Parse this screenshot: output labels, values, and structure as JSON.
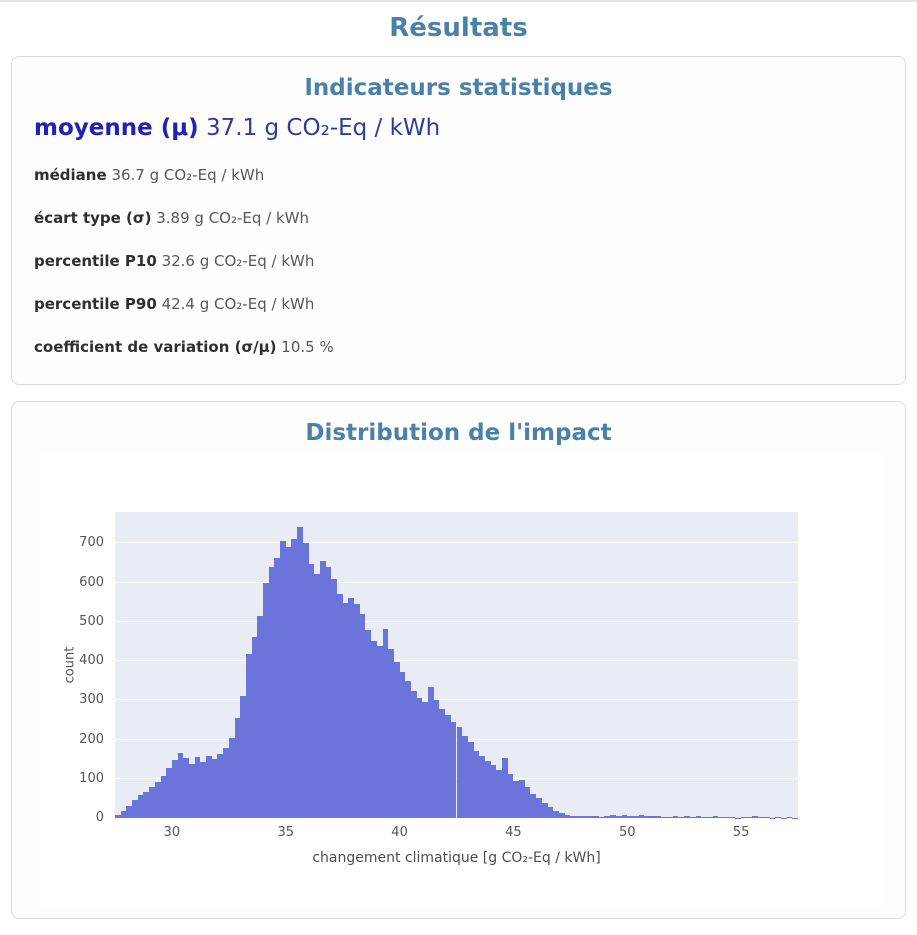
{
  "page": {
    "title": "Résultats"
  },
  "stats_card": {
    "title": "Indicateurs statistiques",
    "highlight": {
      "label": "moyenne (μ)",
      "value": "37.1 g CO₂-Eq / kWh"
    },
    "rows": [
      {
        "label": "médiane",
        "value": "36.7 g CO₂-Eq / kWh"
      },
      {
        "label": "écart type (σ)",
        "value": "3.89 g CO₂-Eq / kWh"
      },
      {
        "label": "percentile P10",
        "value": "32.6 g CO₂-Eq / kWh"
      },
      {
        "label": "percentile P90",
        "value": "42.4 g CO₂-Eq / kWh"
      },
      {
        "label": "coefficient de variation (σ/μ)",
        "value": "10.5 %"
      }
    ]
  },
  "chart_card": {
    "title": "Distribution de l'impact"
  },
  "chart_data": {
    "type": "bar",
    "subtype": "histogram",
    "title": "Distribution de l'impact",
    "xlabel": "changement climatique [g CO₂-Eq / kWh]",
    "ylabel": "count",
    "xlim": [
      27.5,
      57.5
    ],
    "ylim": [
      0,
      780
    ],
    "x_ticks": [
      30,
      35,
      40,
      45,
      50,
      55
    ],
    "y_ticks": [
      0,
      100,
      200,
      300,
      400,
      500,
      600,
      700
    ],
    "bin_start": 27.5,
    "bin_width": 0.25,
    "counts": [
      8,
      18,
      30,
      45,
      58,
      66,
      78,
      92,
      108,
      128,
      148,
      166,
      152,
      138,
      155,
      144,
      158,
      150,
      163,
      178,
      205,
      255,
      310,
      418,
      462,
      515,
      600,
      640,
      662,
      705,
      690,
      712,
      742,
      700,
      648,
      622,
      655,
      640,
      610,
      572,
      548,
      562,
      545,
      520,
      480,
      452,
      438,
      482,
      430,
      398,
      372,
      348,
      325,
      305,
      295,
      335,
      300,
      278,
      262,
      246,
      232,
      210,
      195,
      172,
      158,
      146,
      134,
      122,
      152,
      112,
      95,
      98,
      78,
      62,
      52,
      38,
      28,
      18,
      12,
      8,
      6,
      5,
      4,
      6,
      5,
      3,
      4,
      7,
      6,
      8,
      6,
      5,
      7,
      4,
      5,
      6,
      2,
      3,
      4,
      3,
      4,
      3,
      4,
      2,
      3,
      4,
      2,
      3,
      2,
      1,
      3,
      2,
      4,
      3,
      2,
      1,
      2,
      1,
      2,
      1
    ],
    "bar_color": "#6b74da",
    "plot_bg": "#e8ecf5",
    "grid": "horizontal-white",
    "legend": "none"
  },
  "colors": {
    "accent": "#4a81ab",
    "highlight_label": "#2121b5",
    "highlight_value": "#2e3c9a",
    "bar": "#6b74da",
    "plot_background": "#e8ecf5"
  }
}
